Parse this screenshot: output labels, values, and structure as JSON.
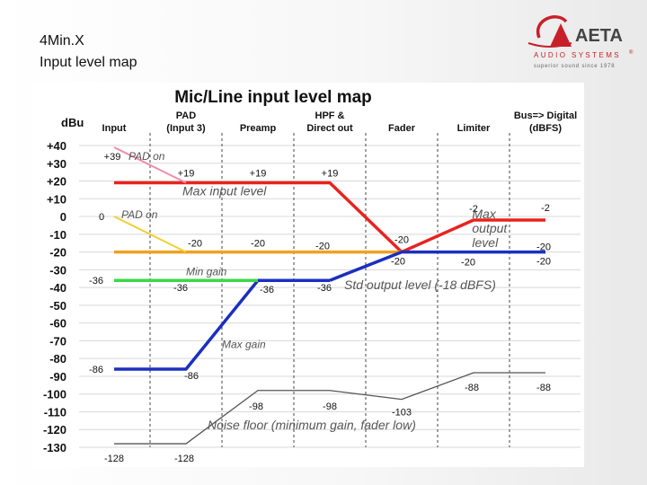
{
  "slide": {
    "title_line1": "4Min.X",
    "title_line2": "Input level map"
  },
  "logo": {
    "name": "AETA",
    "line": "AUDIO SYSTEMS",
    "reg": "®",
    "tagline": "superior sound since 1978"
  },
  "colors": {
    "red": "#e8231f",
    "orange": "#f0a020",
    "blue": "#1b2fc0",
    "green": "#3bd84a",
    "pink": "#f08ab0",
    "yellow": "#f0d030",
    "noise": "#555555",
    "logo_red": "#c8202a"
  },
  "chart_data": {
    "type": "line",
    "title": "Mic/Line input level map",
    "ylabel": "dBu",
    "ylim": [
      -130,
      40
    ],
    "yticks": [
      "+40",
      "+30",
      "+20",
      "+10",
      "0",
      "-10",
      "-20",
      "-30",
      "-40",
      "-50",
      "-60",
      "-70",
      "-80",
      "-90",
      "-100",
      "-110",
      "-120",
      "-130"
    ],
    "categories": [
      {
        "line1": "Input",
        "line2": ""
      },
      {
        "line1": "PAD",
        "line2": "(Input 3)"
      },
      {
        "line1": "Preamp",
        "line2": ""
      },
      {
        "line1": "HPF &",
        "line2": "Direct out"
      },
      {
        "line1": "Fader",
        "line2": ""
      },
      {
        "line1": "Limiter",
        "line2": ""
      },
      {
        "line1": "Bus=> Digital",
        "line2": "(dBFS)"
      }
    ],
    "grid": true,
    "series": [
      {
        "id": "max",
        "color": "red",
        "x": [
          0,
          1,
          2,
          3,
          4,
          5,
          6
        ],
        "y": [
          19,
          19,
          19,
          19,
          -20,
          -2,
          -2
        ]
      },
      {
        "id": "std",
        "color": "orange",
        "x": [
          0,
          1,
          2,
          3,
          4
        ],
        "y": [
          -20,
          -20,
          -20,
          -20,
          -20
        ]
      },
      {
        "id": "minout",
        "color": "blue",
        "x": [
          3,
          4,
          5,
          6
        ],
        "y": [
          -36,
          -20,
          -20,
          -20
        ]
      },
      {
        "id": "maxgain",
        "color": "blue",
        "x": [
          0,
          1,
          2,
          3
        ],
        "y": [
          -86,
          -86,
          -36,
          -36
        ]
      },
      {
        "id": "min",
        "color": "green",
        "x": [
          0,
          1,
          2
        ],
        "y": [
          -36,
          -36,
          -36
        ]
      },
      {
        "id": "pad_hi",
        "color": "pink",
        "x": [
          0,
          1
        ],
        "y": [
          39,
          19
        ]
      },
      {
        "id": "pad_lo",
        "color": "yellow",
        "x": [
          0,
          1
        ],
        "y": [
          0,
          -20
        ]
      },
      {
        "id": "noise",
        "color": "noise",
        "x": [
          0,
          1,
          2,
          3,
          4,
          5,
          6
        ],
        "y": [
          -128,
          -128,
          -98,
          -98,
          -103,
          -88,
          -88
        ]
      }
    ],
    "point_labels": [
      {
        "text": "+39",
        "x": 0,
        "y": 39,
        "dx": -2,
        "dy": 10
      },
      {
        "text": "+19",
        "x": 1,
        "y": 19,
        "dx": 0,
        "dy": -11
      },
      {
        "text": "+19",
        "x": 2,
        "y": 19,
        "dx": 0,
        "dy": -11
      },
      {
        "text": "+19",
        "x": 3,
        "y": 19,
        "dx": 0,
        "dy": -11
      },
      {
        "text": "0",
        "x": 0,
        "y": 0,
        "dx": -14,
        "dy": 0
      },
      {
        "text": "-20",
        "x": 1,
        "y": -20,
        "dx": 10,
        "dy": -10
      },
      {
        "text": "-20",
        "x": 2,
        "y": -20,
        "dx": 0,
        "dy": -10
      },
      {
        "text": "-20",
        "x": 3,
        "y": -20,
        "dx": -8,
        "dy": -7
      },
      {
        "text": "-20",
        "x": 4,
        "y": -20,
        "dx": 0,
        "dy": -14
      },
      {
        "text": "-20",
        "x": 4,
        "y": -20,
        "dx": -4,
        "dy": 10
      },
      {
        "text": "-20",
        "x": 5,
        "y": -20,
        "dx": -6,
        "dy": 11
      },
      {
        "text": "-20",
        "x": 6,
        "y": -20,
        "dx": -2,
        "dy": -6
      },
      {
        "text": "-20",
        "x": 6,
        "y": -20,
        "dx": -2,
        "dy": 10
      },
      {
        "text": "-2",
        "x": 5,
        "y": -2,
        "dx": 0,
        "dy": -13
      },
      {
        "text": "-2",
        "x": 6,
        "y": -2,
        "dx": 0,
        "dy": -14
      },
      {
        "text": "-36",
        "x": 0,
        "y": -36,
        "dx": -20,
        "dy": 0
      },
      {
        "text": "-36",
        "x": 1,
        "y": -36,
        "dx": -6,
        "dy": 8
      },
      {
        "text": "-36",
        "x": 2,
        "y": -36,
        "dx": 10,
        "dy": 10
      },
      {
        "text": "-36",
        "x": 3,
        "y": -36,
        "dx": -6,
        "dy": 8
      },
      {
        "text": "-86",
        "x": 0,
        "y": -86,
        "dx": -20,
        "dy": 0
      },
      {
        "text": "-86",
        "x": 1,
        "y": -86,
        "dx": 6,
        "dy": 7
      },
      {
        "text": "-98",
        "x": 2,
        "y": -98,
        "dx": -2,
        "dy": 17
      },
      {
        "text": "-98",
        "x": 3,
        "y": -98,
        "dx": 0,
        "dy": 17
      },
      {
        "text": "-103",
        "x": 4,
        "y": -103,
        "dx": 0,
        "dy": 14
      },
      {
        "text": "-88",
        "x": 5,
        "y": -88,
        "dx": -2,
        "dy": 16
      },
      {
        "text": "-88",
        "x": 6,
        "y": -88,
        "dx": -2,
        "dy": 16
      },
      {
        "text": "-128",
        "x": 0,
        "y": -128,
        "dx": 0,
        "dy": 16
      },
      {
        "text": "-128",
        "x": 1,
        "y": -128,
        "dx": -2,
        "dy": 16
      }
    ],
    "annotations": [
      {
        "lines": [
          "PAD on"
        ],
        "x": 0.2,
        "y": 32,
        "color": "#555555",
        "size": 12
      },
      {
        "lines": [
          "PAD on"
        ],
        "x": 0.1,
        "y": -1,
        "color": "#555555",
        "size": 12
      },
      {
        "lines": [
          "Max input level"
        ],
        "x": 0.95,
        "y": 12,
        "color": "#555555",
        "size": 14
      },
      {
        "lines": [
          "Min gain"
        ],
        "x": 1.0,
        "y": -33,
        "color": "#555555",
        "size": 12
      },
      {
        "lines": [
          "Std output level (-18 dBFS)"
        ],
        "x": 3.2,
        "y": -41,
        "color": "#555555",
        "size": 14
      },
      {
        "lines": [
          "Max gain"
        ],
        "x": 1.5,
        "y": -74,
        "color": "#555555",
        "size": 12
      },
      {
        "lines": [
          "Noise floor (minimum gain, fader low)"
        ],
        "x": 1.3,
        "y": -120,
        "color": "#555555",
        "size": 14
      },
      {
        "lines": [
          "Max",
          "output",
          "level"
        ],
        "x": 4.98,
        "y": -1,
        "color": "#555555",
        "size": 14
      }
    ]
  }
}
